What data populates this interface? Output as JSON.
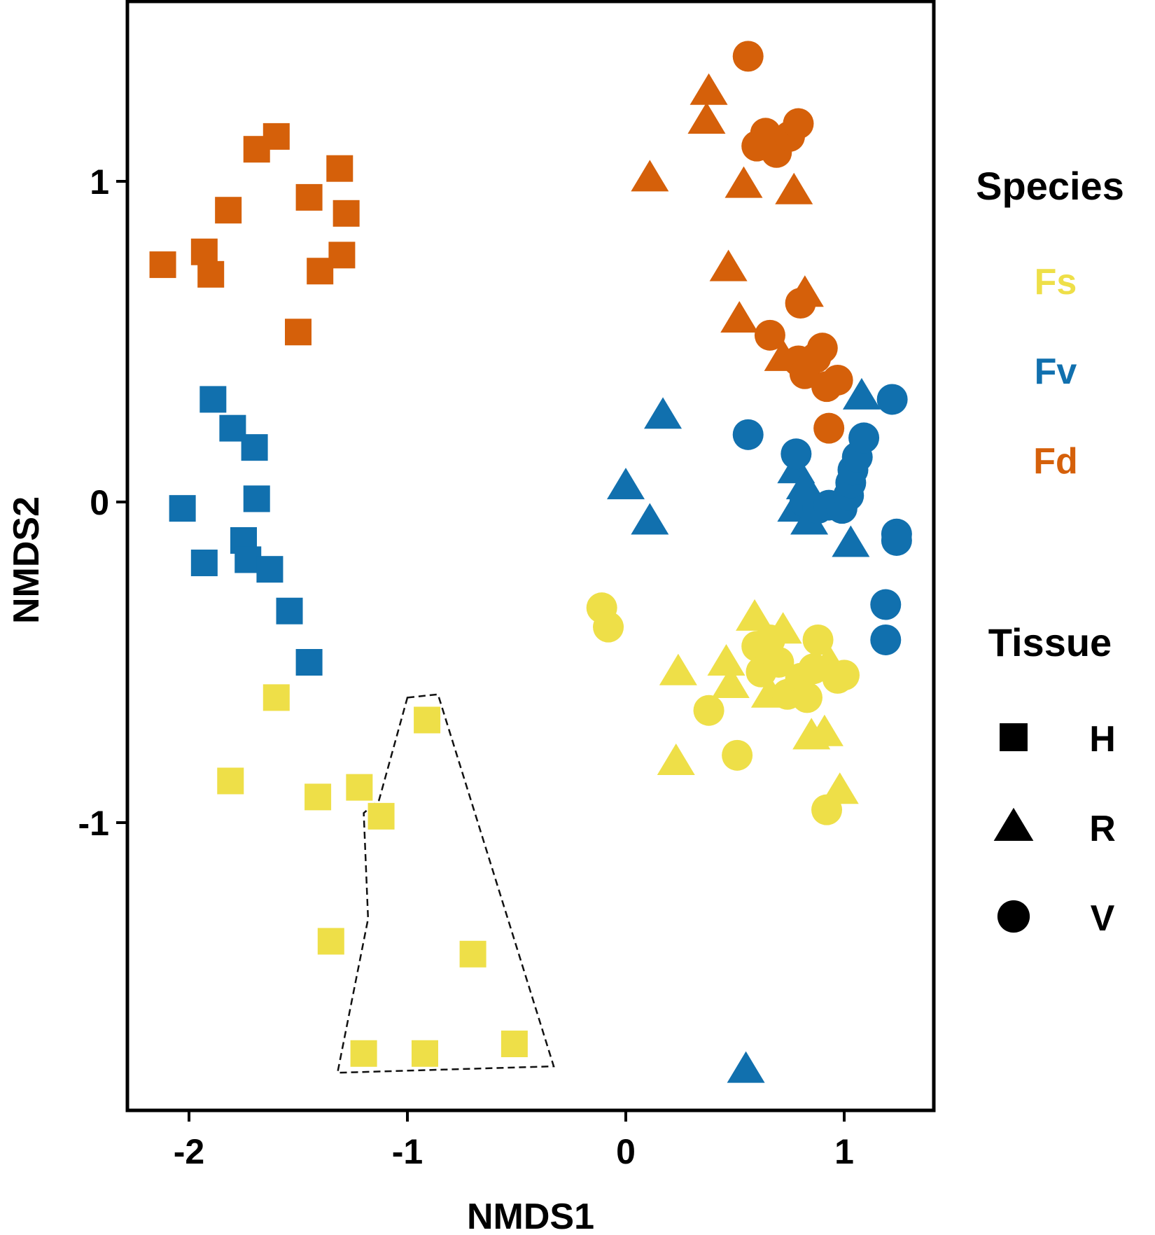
{
  "chart_data": {
    "type": "scatter",
    "title": "",
    "xlabel": "NMDS1",
    "ylabel": "NMDS2",
    "xlim": [
      -2.3,
      1.4
    ],
    "ylim": [
      -1.9,
      1.55
    ],
    "xticks": [
      -2,
      -1,
      0,
      1
    ],
    "yticks": [
      -1,
      0,
      1
    ],
    "xtick_labels": [
      "-2",
      "-1",
      "0",
      "1"
    ],
    "ytick_labels": [
      "-1",
      "0",
      "1"
    ],
    "grid": false,
    "legend_position": "right",
    "species_legend": {
      "title": "Species",
      "items": [
        {
          "key": "Fs",
          "label": "Fs",
          "color": "#EEDF48"
        },
        {
          "key": "Fv",
          "label": "Fv",
          "color": "#1170AE"
        },
        {
          "key": "Fd",
          "label": "Fd",
          "color": "#D5600A"
        }
      ]
    },
    "tissue_legend": {
      "title": "Tissue",
      "items": [
        {
          "key": "H",
          "label": "H",
          "shape": "square"
        },
        {
          "key": "R",
          "label": "R",
          "shape": "triangle"
        },
        {
          "key": "V",
          "label": "V",
          "shape": "circle"
        }
      ]
    },
    "hull": {
      "style": "dashed",
      "points": [
        [
          -1.0,
          -0.61
        ],
        [
          -0.86,
          -0.6
        ],
        [
          -0.33,
          -1.76
        ],
        [
          -1.32,
          -1.78
        ],
        [
          -1.18,
          -1.3
        ],
        [
          -1.2,
          -0.97
        ],
        [
          -1.13,
          -0.93
        ]
      ]
    },
    "points": [
      {
        "species": "Fd",
        "tissue": "H",
        "x": -2.12,
        "y": 0.74
      },
      {
        "species": "Fd",
        "tissue": "H",
        "x": -1.93,
        "y": 0.78
      },
      {
        "species": "Fd",
        "tissue": "H",
        "x": -1.9,
        "y": 0.71
      },
      {
        "species": "Fd",
        "tissue": "H",
        "x": -1.82,
        "y": 0.91
      },
      {
        "species": "Fd",
        "tissue": "H",
        "x": -1.69,
        "y": 1.1
      },
      {
        "species": "Fd",
        "tissue": "H",
        "x": -1.6,
        "y": 1.14
      },
      {
        "species": "Fd",
        "tissue": "H",
        "x": -1.5,
        "y": 0.53
      },
      {
        "species": "Fd",
        "tissue": "H",
        "x": -1.45,
        "y": 0.95
      },
      {
        "species": "Fd",
        "tissue": "H",
        "x": -1.4,
        "y": 0.72
      },
      {
        "species": "Fd",
        "tissue": "H",
        "x": -1.31,
        "y": 1.04
      },
      {
        "species": "Fd",
        "tissue": "H",
        "x": -1.3,
        "y": 0.77
      },
      {
        "species": "Fd",
        "tissue": "H",
        "x": -1.28,
        "y": 0.9
      },
      {
        "species": "Fd",
        "tissue": "R",
        "x": 0.11,
        "y": 1.01
      },
      {
        "species": "Fd",
        "tissue": "R",
        "x": 0.37,
        "y": 1.19
      },
      {
        "species": "Fd",
        "tissue": "R",
        "x": 0.38,
        "y": 1.28
      },
      {
        "species": "Fd",
        "tissue": "R",
        "x": 0.47,
        "y": 0.73
      },
      {
        "species": "Fd",
        "tissue": "R",
        "x": 0.52,
        "y": 0.57
      },
      {
        "species": "Fd",
        "tissue": "R",
        "x": 0.54,
        "y": 0.99
      },
      {
        "species": "Fd",
        "tissue": "R",
        "x": 0.77,
        "y": 0.97
      },
      {
        "species": "Fd",
        "tissue": "R",
        "x": 0.82,
        "y": 0.65
      },
      {
        "species": "Fd",
        "tissue": "R",
        "x": 0.72,
        "y": 0.45
      },
      {
        "species": "Fd",
        "tissue": "V",
        "x": 0.56,
        "y": 1.39
      },
      {
        "species": "Fd",
        "tissue": "V",
        "x": 0.6,
        "y": 1.11
      },
      {
        "species": "Fd",
        "tissue": "V",
        "x": 0.64,
        "y": 1.15
      },
      {
        "species": "Fd",
        "tissue": "V",
        "x": 0.69,
        "y": 1.09
      },
      {
        "species": "Fd",
        "tissue": "V",
        "x": 0.75,
        "y": 1.14
      },
      {
        "species": "Fd",
        "tissue": "V",
        "x": 0.79,
        "y": 1.18
      },
      {
        "species": "Fd",
        "tissue": "V",
        "x": 0.66,
        "y": 0.52
      },
      {
        "species": "Fd",
        "tissue": "V",
        "x": 0.8,
        "y": 0.62
      },
      {
        "species": "Fd",
        "tissue": "V",
        "x": 0.79,
        "y": 0.44
      },
      {
        "species": "Fd",
        "tissue": "V",
        "x": 0.82,
        "y": 0.4
      },
      {
        "species": "Fd",
        "tissue": "V",
        "x": 0.87,
        "y": 0.45
      },
      {
        "species": "Fd",
        "tissue": "V",
        "x": 0.9,
        "y": 0.48
      },
      {
        "species": "Fd",
        "tissue": "V",
        "x": 0.92,
        "y": 0.36
      },
      {
        "species": "Fd",
        "tissue": "V",
        "x": 0.97,
        "y": 0.38
      },
      {
        "species": "Fd",
        "tissue": "V",
        "x": 0.93,
        "y": 0.23
      },
      {
        "species": "Fv",
        "tissue": "H",
        "x": -2.03,
        "y": -0.02
      },
      {
        "species": "Fv",
        "tissue": "H",
        "x": -1.93,
        "y": -0.19
      },
      {
        "species": "Fv",
        "tissue": "H",
        "x": -1.89,
        "y": 0.32
      },
      {
        "species": "Fv",
        "tissue": "H",
        "x": -1.8,
        "y": 0.23
      },
      {
        "species": "Fv",
        "tissue": "H",
        "x": -1.75,
        "y": -0.12
      },
      {
        "species": "Fv",
        "tissue": "H",
        "x": -1.73,
        "y": -0.18
      },
      {
        "species": "Fv",
        "tissue": "H",
        "x": -1.7,
        "y": 0.17
      },
      {
        "species": "Fv",
        "tissue": "H",
        "x": -1.69,
        "y": 0.01
      },
      {
        "species": "Fv",
        "tissue": "H",
        "x": -1.63,
        "y": -0.21
      },
      {
        "species": "Fv",
        "tissue": "H",
        "x": -1.54,
        "y": -0.34
      },
      {
        "species": "Fv",
        "tissue": "H",
        "x": -1.45,
        "y": -0.5
      },
      {
        "species": "Fv",
        "tissue": "R",
        "x": 0.0,
        "y": 0.05
      },
      {
        "species": "Fv",
        "tissue": "R",
        "x": 0.11,
        "y": -0.06
      },
      {
        "species": "Fv",
        "tissue": "R",
        "x": 0.17,
        "y": 0.27
      },
      {
        "species": "Fv",
        "tissue": "R",
        "x": 0.55,
        "y": -1.77
      },
      {
        "species": "Fv",
        "tissue": "R",
        "x": 0.78,
        "y": 0.1
      },
      {
        "species": "Fv",
        "tissue": "R",
        "x": 0.78,
        "y": -0.02
      },
      {
        "species": "Fv",
        "tissue": "R",
        "x": 0.82,
        "y": 0.05
      },
      {
        "species": "Fv",
        "tissue": "R",
        "x": 0.84,
        "y": -0.06
      },
      {
        "species": "Fv",
        "tissue": "R",
        "x": 1.03,
        "y": -0.13
      },
      {
        "species": "Fv",
        "tissue": "R",
        "x": 1.08,
        "y": 0.33
      },
      {
        "species": "Fv",
        "tissue": "V",
        "x": 0.56,
        "y": 0.21
      },
      {
        "species": "Fv",
        "tissue": "V",
        "x": 0.78,
        "y": 0.15
      },
      {
        "species": "Fv",
        "tissue": "V",
        "x": 0.82,
        "y": 0.0
      },
      {
        "species": "Fv",
        "tissue": "V",
        "x": 0.88,
        "y": -0.02
      },
      {
        "species": "Fv",
        "tissue": "V",
        "x": 0.93,
        "y": -0.01
      },
      {
        "species": "Fv",
        "tissue": "V",
        "x": 0.99,
        "y": -0.02
      },
      {
        "species": "Fv",
        "tissue": "V",
        "x": 1.02,
        "y": 0.02
      },
      {
        "species": "Fv",
        "tissue": "V",
        "x": 1.03,
        "y": 0.06
      },
      {
        "species": "Fv",
        "tissue": "V",
        "x": 1.04,
        "y": 0.1
      },
      {
        "species": "Fv",
        "tissue": "V",
        "x": 1.06,
        "y": 0.14
      },
      {
        "species": "Fv",
        "tissue": "V",
        "x": 1.09,
        "y": 0.2
      },
      {
        "species": "Fv",
        "tissue": "V",
        "x": 1.22,
        "y": 0.32
      },
      {
        "species": "Fv",
        "tissue": "V",
        "x": 1.24,
        "y": -0.1
      },
      {
        "species": "Fv",
        "tissue": "V",
        "x": 1.24,
        "y": -0.12
      },
      {
        "species": "Fv",
        "tissue": "V",
        "x": 1.19,
        "y": -0.32
      },
      {
        "species": "Fv",
        "tissue": "V",
        "x": 1.19,
        "y": -0.43
      },
      {
        "species": "Fs",
        "tissue": "H",
        "x": -1.81,
        "y": -0.87
      },
      {
        "species": "Fs",
        "tissue": "H",
        "x": -1.6,
        "y": -0.61
      },
      {
        "species": "Fs",
        "tissue": "H",
        "x": -1.41,
        "y": -0.92
      },
      {
        "species": "Fs",
        "tissue": "H",
        "x": -1.35,
        "y": -1.37
      },
      {
        "species": "Fs",
        "tissue": "H",
        "x": -1.22,
        "y": -0.89
      },
      {
        "species": "Fs",
        "tissue": "H",
        "x": -1.12,
        "y": -0.98
      },
      {
        "species": "Fs",
        "tissue": "H",
        "x": -1.2,
        "y": -1.72
      },
      {
        "species": "Fs",
        "tissue": "H",
        "x": -0.91,
        "y": -0.68
      },
      {
        "species": "Fs",
        "tissue": "H",
        "x": -0.92,
        "y": -1.72
      },
      {
        "species": "Fs",
        "tissue": "H",
        "x": -0.7,
        "y": -1.41
      },
      {
        "species": "Fs",
        "tissue": "H",
        "x": -0.51,
        "y": -1.69
      },
      {
        "species": "Fs",
        "tissue": "R",
        "x": 0.24,
        "y": -0.53
      },
      {
        "species": "Fs",
        "tissue": "R",
        "x": 0.23,
        "y": -0.81
      },
      {
        "species": "Fs",
        "tissue": "R",
        "x": 0.46,
        "y": -0.5
      },
      {
        "species": "Fs",
        "tissue": "R",
        "x": 0.48,
        "y": -0.57
      },
      {
        "species": "Fs",
        "tissue": "R",
        "x": 0.59,
        "y": -0.36
      },
      {
        "species": "Fs",
        "tissue": "R",
        "x": 0.66,
        "y": -0.6
      },
      {
        "species": "Fs",
        "tissue": "R",
        "x": 0.72,
        "y": -0.4
      },
      {
        "species": "Fs",
        "tissue": "R",
        "x": 0.85,
        "y": -0.73
      },
      {
        "species": "Fs",
        "tissue": "R",
        "x": 0.91,
        "y": -0.72
      },
      {
        "species": "Fs",
        "tissue": "R",
        "x": 0.98,
        "y": -0.9
      },
      {
        "species": "Fs",
        "tissue": "R",
        "x": 0.93,
        "y": -0.5
      },
      {
        "species": "Fs",
        "tissue": "V",
        "x": -0.11,
        "y": -0.33
      },
      {
        "species": "Fs",
        "tissue": "V",
        "x": -0.08,
        "y": -0.39
      },
      {
        "species": "Fs",
        "tissue": "V",
        "x": 0.38,
        "y": -0.65
      },
      {
        "species": "Fs",
        "tissue": "V",
        "x": 0.51,
        "y": -0.79
      },
      {
        "species": "Fs",
        "tissue": "V",
        "x": 0.6,
        "y": -0.45
      },
      {
        "species": "Fs",
        "tissue": "V",
        "x": 0.62,
        "y": -0.53
      },
      {
        "species": "Fs",
        "tissue": "V",
        "x": 0.66,
        "y": -0.43
      },
      {
        "species": "Fs",
        "tissue": "V",
        "x": 0.7,
        "y": -0.5
      },
      {
        "species": "Fs",
        "tissue": "V",
        "x": 0.74,
        "y": -0.6
      },
      {
        "species": "Fs",
        "tissue": "V",
        "x": 0.8,
        "y": -0.55
      },
      {
        "species": "Fs",
        "tissue": "V",
        "x": 0.83,
        "y": -0.61
      },
      {
        "species": "Fs",
        "tissue": "V",
        "x": 0.86,
        "y": -0.52
      },
      {
        "species": "Fs",
        "tissue": "V",
        "x": 0.88,
        "y": -0.43
      },
      {
        "species": "Fs",
        "tissue": "V",
        "x": 0.97,
        "y": -0.55
      },
      {
        "species": "Fs",
        "tissue": "V",
        "x": 1.0,
        "y": -0.54
      },
      {
        "species": "Fs",
        "tissue": "V",
        "x": 0.92,
        "y": -0.96
      }
    ]
  }
}
